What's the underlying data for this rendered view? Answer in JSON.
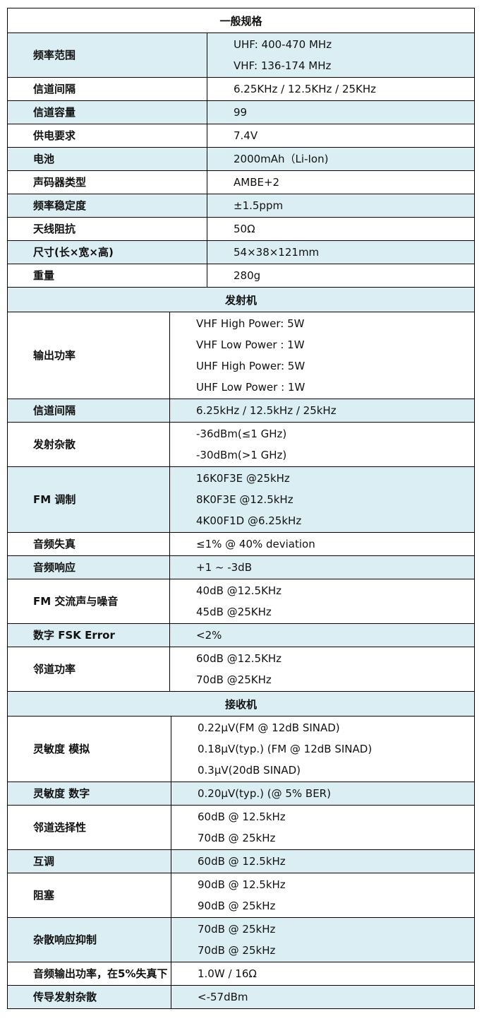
{
  "colors": {
    "shade": "#DBEEF3",
    "border": "#000000"
  },
  "sections": [
    {
      "title": "一般规格",
      "rows": [
        {
          "label": "频率范围",
          "values": [
            "UHF: 400-470 MHz",
            "VHF: 136-174 MHz"
          ]
        },
        {
          "label": "信道间隔",
          "values": [
            "6.25KHz / 12.5KHz / 25KHz"
          ]
        },
        {
          "label": "信道容量",
          "values": [
            "99"
          ]
        },
        {
          "label": "供电要求",
          "values": [
            "7.4V"
          ]
        },
        {
          "label": "电池",
          "values": [
            "2000mAh（Li-Ion)"
          ]
        },
        {
          "label": "声码器类型",
          "values": [
            "AMBE+2"
          ]
        },
        {
          "label": "频率稳定度",
          "values": [
            "±1.5ppm"
          ]
        },
        {
          "label": "天线阻抗",
          "values": [
            "50Ω"
          ]
        },
        {
          "label": "尺寸(长×宽×高)",
          "values": [
            "54×38×121mm"
          ]
        },
        {
          "label": "重量",
          "values": [
            "280g"
          ]
        }
      ]
    },
    {
      "title": "发射机",
      "rows": [
        {
          "label": "输出功率",
          "values": [
            "VHF High Power: 5W",
            "VHF Low Power : 1W",
            "UHF High Power: 5W",
            "UHF Low Power : 1W"
          ]
        },
        {
          "label": "信道间隔",
          "values": [
            "6.25kHz / 12.5kHz / 25kHz"
          ]
        },
        {
          "label": "发射杂散",
          "values": [
            "-36dBm(≤1 GHz)",
            "-30dBm(>1 GHz)"
          ]
        },
        {
          "label": "FM 调制",
          "values": [
            "16K0F3E @25kHz",
            "8K0F3E @12.5kHz",
            "4K00F1D @6.25kHz"
          ]
        },
        {
          "label": "音频失真",
          "values": [
            "≤1% @ 40% deviation"
          ]
        },
        {
          "label": "音频响应",
          "values": [
            "+1 ~ -3dB"
          ]
        },
        {
          "label": "FM  交流声与噪音",
          "values": [
            "40dB @12.5KHz",
            "45dB @25KHz"
          ]
        },
        {
          "label": "数字 FSK Error",
          "values": [
            "<2%"
          ]
        },
        {
          "label": "邻道功率",
          "values": [
            "60dB @12.5KHz",
            "70dB @25KHz"
          ]
        }
      ]
    },
    {
      "title": "接收机",
      "rows": [
        {
          "label": "灵敏度 模拟",
          "values": [
            "0.22μV(FM @ 12dB SINAD)",
            "0.18μV(typ.) (FM @ 12dB SINAD)",
            "0.3μV(20dB SINAD)"
          ]
        },
        {
          "label": "灵敏度 数字",
          "values": [
            "0.20μV(typ.) (@ 5% BER)"
          ]
        },
        {
          "label": "邻道选择性",
          "values": [
            "60dB @ 12.5kHz",
            "70dB @ 25kHz"
          ]
        },
        {
          "label": "互调",
          "values": [
            "60dB @ 12.5kHz"
          ]
        },
        {
          "label": "阻塞",
          "values": [
            "90dB @ 12.5kHz",
            "90dB @ 25kHz"
          ]
        },
        {
          "label": "杂散响应抑制",
          "values": [
            "70dB @ 25kHz",
            "70dB @ 25kHz"
          ]
        },
        {
          "label": "音频输出功率，在5%失真下",
          "values": [
            "1.0W / 16Ω"
          ]
        },
        {
          "label": "传导发射杂散",
          "values": [
            "<-57dBm"
          ]
        }
      ]
    }
  ]
}
